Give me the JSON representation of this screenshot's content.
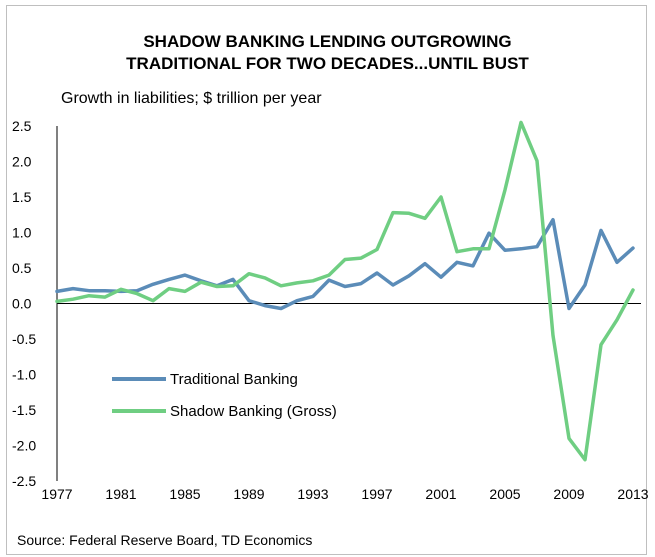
{
  "chart_data": {
    "type": "line",
    "title_line1": "SHADOW BANKING LENDING OUTGROWING",
    "title_line2": "TRADITIONAL FOR TWO DECADES...UNTIL BUST",
    "ylabel": "Growth in liabilities; $ trillion per year",
    "source": "Source: Federal Reserve Board, TD Economics",
    "ylim": [
      -2.5,
      2.5
    ],
    "xlim": [
      1977,
      2013
    ],
    "yticks": [
      2.5,
      2.0,
      1.5,
      1.0,
      0.5,
      0.0,
      -0.5,
      -1.0,
      -1.5,
      -2.0,
      -2.5
    ],
    "ytick_labels": [
      "2.5",
      "2.0",
      "1.5",
      "1.0",
      "0.5",
      "0.0",
      "-0.5",
      "-1.0",
      "-1.5",
      "-2.0",
      "-2.5"
    ],
    "xticks": [
      1977,
      1981,
      1985,
      1989,
      1993,
      1997,
      2001,
      2005,
      2009,
      2013
    ],
    "xtick_labels": [
      "1977",
      "1981",
      "1985",
      "1989",
      "1993",
      "1997",
      "2001",
      "2005",
      "2009",
      "2013"
    ],
    "grid": false,
    "legend_position": "bottom-left",
    "x": [
      1977,
      1978,
      1979,
      1980,
      1981,
      1982,
      1983,
      1984,
      1985,
      1986,
      1987,
      1988,
      1989,
      1990,
      1991,
      1992,
      1993,
      1994,
      1995,
      1996,
      1997,
      1998,
      1999,
      2000,
      2001,
      2002,
      2003,
      2004,
      2005,
      2006,
      2007,
      2008,
      2009,
      2010,
      2011,
      2012,
      2013
    ],
    "series": [
      {
        "name": "Traditional Banking",
        "color": "#5b8cb8",
        "values": [
          0.17,
          0.21,
          0.18,
          0.18,
          0.17,
          0.18,
          0.27,
          0.34,
          0.4,
          0.32,
          0.25,
          0.34,
          0.04,
          -0.03,
          -0.07,
          0.04,
          0.1,
          0.33,
          0.24,
          0.28,
          0.43,
          0.26,
          0.39,
          0.56,
          0.37,
          0.58,
          0.53,
          0.99,
          0.75,
          0.77,
          0.8,
          1.18,
          -0.07,
          0.26,
          1.03,
          0.58,
          0.78
        ]
      },
      {
        "name": "Shadow Banking (Gross)",
        "color": "#6fce82",
        "values": [
          0.03,
          0.06,
          0.11,
          0.09,
          0.2,
          0.14,
          0.04,
          0.21,
          0.17,
          0.3,
          0.24,
          0.25,
          0.42,
          0.36,
          0.25,
          0.29,
          0.32,
          0.4,
          0.62,
          0.64,
          0.76,
          1.28,
          1.27,
          1.2,
          1.5,
          0.73,
          0.77,
          0.77,
          1.6,
          2.55,
          2.01,
          -0.45,
          -1.9,
          -2.2,
          -0.58,
          -0.23,
          0.19
        ]
      }
    ]
  }
}
